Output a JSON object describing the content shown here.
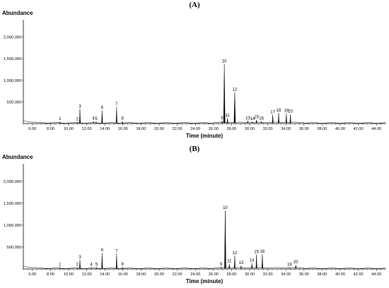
{
  "chart_data": [
    {
      "type": "line",
      "panel_label": "(A)",
      "title": "",
      "ylabel": "Abundance",
      "xlabel": "Time (minute)",
      "xlim": [
        5.0,
        45.0
      ],
      "ylim": [
        0,
        2400000
      ],
      "xticks": [
        6.0,
        8.0,
        10.0,
        12.0,
        14.0,
        16.0,
        18.0,
        20.0,
        22.0,
        24.0,
        26.0,
        28.0,
        30.0,
        32.0,
        34.0,
        36.0,
        38.0,
        40.0,
        42.0,
        44.0
      ],
      "xtick_labels": [
        "6.00",
        "8.00",
        "10.00",
        "12.00",
        "14.00",
        "16.00",
        "18.00",
        "20.00",
        "22.00",
        "24.00",
        "26.00",
        "28.00",
        "30.00",
        "32.00",
        "34.00",
        "36.00",
        "38.00",
        "40.00",
        "42.00",
        "44.00"
      ],
      "yticks": [
        500000,
        1000000,
        1500000,
        2000000
      ],
      "ytick_labels": [
        "500,000",
        "1,000,000",
        "1,500,000",
        "2,000,000"
      ],
      "grid": false,
      "peaks": [
        {
          "label": "1",
          "x": 9.05,
          "y": 40000
        },
        {
          "label": "2",
          "x": 10.95,
          "y": 35000
        },
        {
          "label": "3",
          "x": 11.25,
          "y": 330000
        },
        {
          "label": "4",
          "x": 12.75,
          "y": 50000
        },
        {
          "label": "5",
          "x": 13.05,
          "y": 40000
        },
        {
          "label": "6",
          "x": 13.7,
          "y": 300000
        },
        {
          "label": "7",
          "x": 15.3,
          "y": 380000
        },
        {
          "label": "8",
          "x": 15.95,
          "y": 45000
        },
        {
          "label": "9",
          "x": 26.95,
          "y": 60000
        },
        {
          "label": "10",
          "x": 27.2,
          "y": 1370000
        },
        {
          "label": "11",
          "x": 27.55,
          "y": 120000
        },
        {
          "label": "12",
          "x": 28.35,
          "y": 720000
        },
        {
          "label": "13",
          "x": 29.8,
          "y": 60000
        },
        {
          "label": "14",
          "x": 30.3,
          "y": 40000
        },
        {
          "label": "15",
          "x": 30.75,
          "y": 80000
        },
        {
          "label": "16",
          "x": 31.3,
          "y": 50000
        },
        {
          "label": "17",
          "x": 32.55,
          "y": 200000
        },
        {
          "label": "18",
          "x": 33.2,
          "y": 240000
        },
        {
          "label": "19",
          "x": 34.05,
          "y": 230000
        },
        {
          "label": "20",
          "x": 34.5,
          "y": 210000
        }
      ]
    },
    {
      "type": "line",
      "panel_label": "(B)",
      "title": "",
      "ylabel": "Abundance",
      "xlabel": "Time (minute)",
      "xlim": [
        5.0,
        45.0
      ],
      "ylim": [
        0,
        2400000
      ],
      "xticks": [
        6.0,
        8.0,
        10.0,
        12.0,
        14.0,
        16.0,
        18.0,
        20.0,
        22.0,
        24.0,
        26.0,
        28.0,
        30.0,
        32.0,
        34.0,
        36.0,
        38.0,
        40.0,
        42.0,
        44.0
      ],
      "xtick_labels": [
        "6.00",
        "8.00",
        "10.00",
        "12.00",
        "14.00",
        "16.00",
        "18.00",
        "20.00",
        "22.00",
        "24.00",
        "26.00",
        "28.00",
        "30.00",
        "32.00",
        "34.00",
        "36.00",
        "38.00",
        "40.00",
        "42.00",
        "44.00"
      ],
      "yticks": [
        500000,
        1000000,
        1500000,
        2000000
      ],
      "ytick_labels": [
        "500,000",
        "1,000,000",
        "1,500,000",
        "2,000,000"
      ],
      "grid": false,
      "peaks": [
        {
          "label": "1",
          "x": 9.05,
          "y": 35000
        },
        {
          "label": "2",
          "x": 10.95,
          "y": 30000
        },
        {
          "label": "3",
          "x": 11.25,
          "y": 200000
        },
        {
          "label": "4",
          "x": 12.5,
          "y": 30000
        },
        {
          "label": "5",
          "x": 13.1,
          "y": 35000
        },
        {
          "label": "6",
          "x": 13.7,
          "y": 360000
        },
        {
          "label": "7",
          "x": 15.3,
          "y": 340000
        },
        {
          "label": "8",
          "x": 15.95,
          "y": 40000
        },
        {
          "label": "9",
          "x": 26.85,
          "y": 40000
        },
        {
          "label": "10",
          "x": 27.3,
          "y": 1330000
        },
        {
          "label": "11",
          "x": 27.75,
          "y": 110000
        },
        {
          "label": "12",
          "x": 28.35,
          "y": 300000
        },
        {
          "label": "13",
          "x": 29.05,
          "y": 70000
        },
        {
          "label": "14",
          "x": 30.25,
          "y": 130000
        },
        {
          "label": "15",
          "x": 30.75,
          "y": 320000
        },
        {
          "label": "16",
          "x": 31.4,
          "y": 330000
        },
        {
          "label": "19",
          "x": 34.4,
          "y": 30000
        },
        {
          "label": "20",
          "x": 35.1,
          "y": 90000
        }
      ]
    }
  ]
}
